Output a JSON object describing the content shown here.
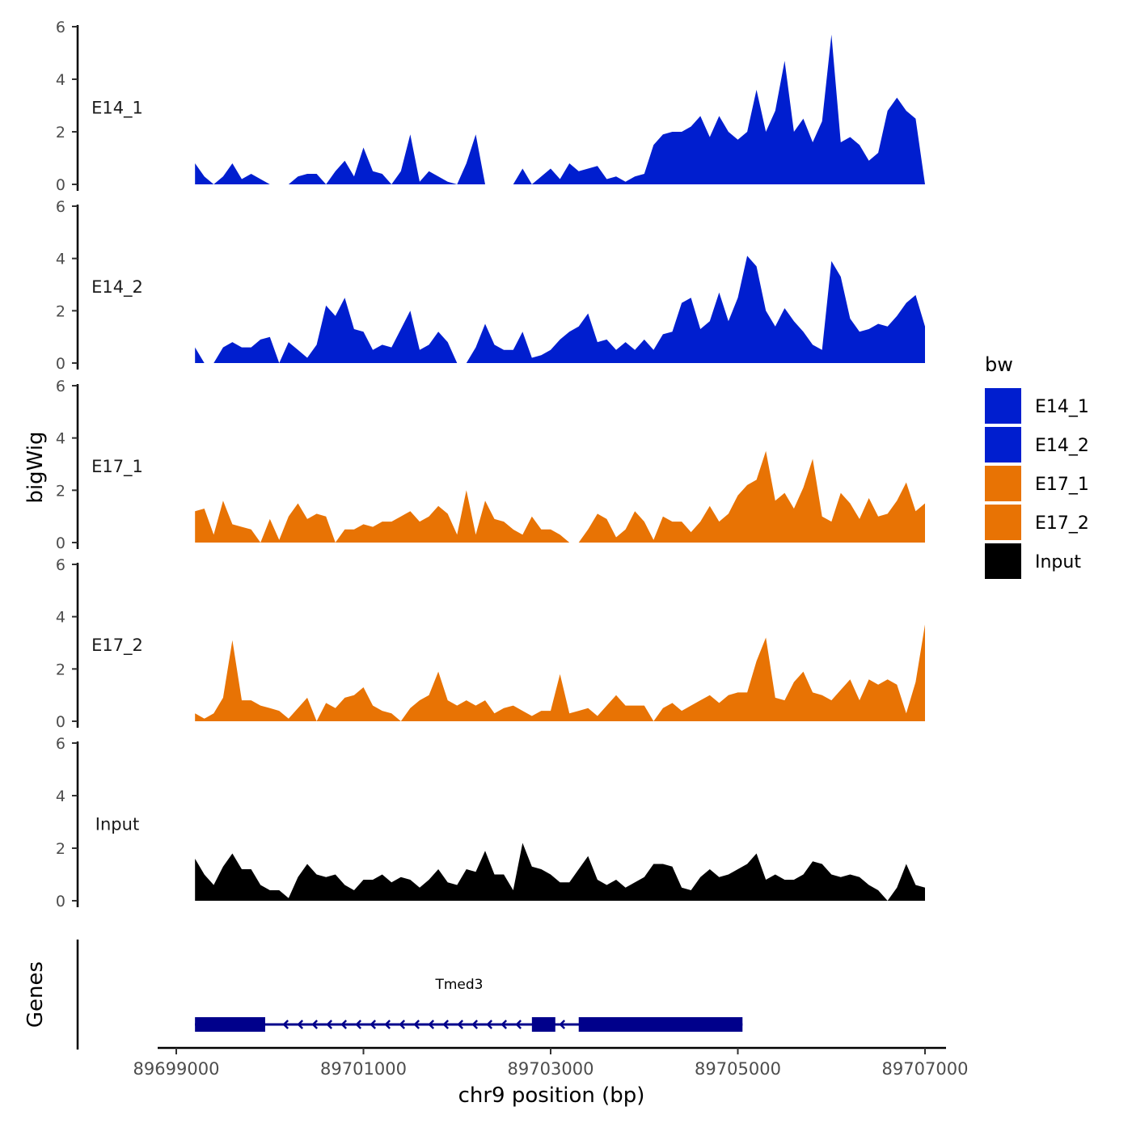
{
  "chart_data": {
    "type": "area",
    "ylabel": "bigWig",
    "xlabel": "chr9 position (bp)",
    "genes_label": "Genes",
    "ylim": [
      0,
      6
    ],
    "y_ticks": [
      "0",
      "2",
      "4",
      "6"
    ],
    "xlim": [
      89699000,
      89707000
    ],
    "x_ticks": [
      {
        "value": 89699000,
        "label": "89699000"
      },
      {
        "value": 89701000,
        "label": "89701000"
      },
      {
        "value": 89703000,
        "label": "89703000"
      },
      {
        "value": 89705000,
        "label": "89705000"
      },
      {
        "value": 89707000,
        "label": "89707000"
      }
    ],
    "legend": {
      "title": "bw",
      "entries": [
        {
          "label": "E14_1",
          "color": "#001ecf"
        },
        {
          "label": "E14_2",
          "color": "#001ecf"
        },
        {
          "label": "E17_1",
          "color": "#e87304"
        },
        {
          "label": "E17_2",
          "color": "#e87304"
        },
        {
          "label": "Input",
          "color": "#000000"
        }
      ]
    },
    "series": [
      {
        "name": "E14_1",
        "color": "#001ecf",
        "x": [
          89699200,
          89699300,
          89699400,
          89699500,
          89699600,
          89699700,
          89699800,
          89699900,
          89700000,
          89700100,
          89700200,
          89700300,
          89700400,
          89700500,
          89700600,
          89700700,
          89700800,
          89700900,
          89701000,
          89701100,
          89701200,
          89701300,
          89701400,
          89701500,
          89701600,
          89701700,
          89701800,
          89701900,
          89702000,
          89702100,
          89702200,
          89702300,
          89702400,
          89702500,
          89702600,
          89702700,
          89702800,
          89702900,
          89703000,
          89703100,
          89703200,
          89703300,
          89703400,
          89703500,
          89703600,
          89703700,
          89703800,
          89703900,
          89704000,
          89704100,
          89704200,
          89704300,
          89704400,
          89704500,
          89704600,
          89704700,
          89704800,
          89704900,
          89705000,
          89705100,
          89705200,
          89705300,
          89705400,
          89705500,
          89705600,
          89705700,
          89705800,
          89705900,
          89706000,
          89706100,
          89706200,
          89706300,
          89706400,
          89706500,
          89706600,
          89706700,
          89706800,
          89706900,
          89707000
        ],
        "y": [
          0.8,
          0.3,
          0,
          0.3,
          0.8,
          0.2,
          0.4,
          0.2,
          0,
          0,
          0,
          0.3,
          0.4,
          0.4,
          0,
          0.5,
          0.9,
          0.3,
          1.4,
          0.5,
          0.4,
          0,
          0.5,
          1.9,
          0.1,
          0.5,
          0.3,
          0.1,
          0,
          0.8,
          1.9,
          0,
          0,
          0,
          0,
          0.6,
          0,
          0.3,
          0.6,
          0.2,
          0.8,
          0.5,
          0.6,
          0.7,
          0.2,
          0.3,
          0.1,
          0.3,
          0.4,
          1.5,
          1.9,
          2.0,
          2.0,
          2.2,
          2.6,
          1.8,
          2.6,
          2.0,
          1.7,
          2.0,
          3.6,
          2.0,
          2.8,
          4.7,
          2.0,
          2.5,
          1.6,
          2.4,
          5.7,
          1.6,
          1.8,
          1.5,
          0.9,
          1.2,
          2.8,
          3.3,
          2.8,
          2.5,
          0
        ],
        "label": "E14_1"
      },
      {
        "name": "E14_2",
        "color": "#001ecf",
        "x": [
          89699200,
          89699300,
          89699400,
          89699500,
          89699600,
          89699700,
          89699800,
          89699900,
          89700000,
          89700100,
          89700200,
          89700300,
          89700400,
          89700500,
          89700600,
          89700700,
          89700800,
          89700900,
          89701000,
          89701100,
          89701200,
          89701300,
          89701400,
          89701500,
          89701600,
          89701700,
          89701800,
          89701900,
          89702000,
          89702100,
          89702200,
          89702300,
          89702400,
          89702500,
          89702600,
          89702700,
          89702800,
          89702900,
          89703000,
          89703100,
          89703200,
          89703300,
          89703400,
          89703500,
          89703600,
          89703700,
          89703800,
          89703900,
          89704000,
          89704100,
          89704200,
          89704300,
          89704400,
          89704500,
          89704600,
          89704700,
          89704800,
          89704900,
          89705000,
          89705100,
          89705200,
          89705300,
          89705400,
          89705500,
          89705600,
          89705700,
          89705800,
          89705900,
          89706000,
          89706100,
          89706200,
          89706300,
          89706400,
          89706500,
          89706600,
          89706700,
          89706800,
          89706900,
          89707000
        ],
        "y": [
          0.6,
          0,
          0,
          0.6,
          0.8,
          0.6,
          0.6,
          0.9,
          1.0,
          0,
          0.8,
          0.5,
          0.2,
          0.7,
          2.2,
          1.8,
          2.5,
          1.3,
          1.2,
          0.5,
          0.7,
          0.6,
          1.3,
          2.0,
          0.5,
          0.7,
          1.2,
          0.8,
          0,
          0,
          0.6,
          1.5,
          0.7,
          0.5,
          0.5,
          1.2,
          0.2,
          0.3,
          0.5,
          0.9,
          1.2,
          1.4,
          1.9,
          0.8,
          0.9,
          0.5,
          0.8,
          0.5,
          0.9,
          0.5,
          1.1,
          1.2,
          2.3,
          2.5,
          1.3,
          1.6,
          2.7,
          1.6,
          2.5,
          4.1,
          3.7,
          2.0,
          1.4,
          2.1,
          1.6,
          1.2,
          0.7,
          0.5,
          3.9,
          3.3,
          1.7,
          1.2,
          1.3,
          1.5,
          1.4,
          1.8,
          2.3,
          2.6,
          1.4
        ],
        "label": "E14_2"
      },
      {
        "name": "E17_1",
        "color": "#e87304",
        "x": [
          89699200,
          89699300,
          89699400,
          89699500,
          89699600,
          89699700,
          89699800,
          89699900,
          89700000,
          89700100,
          89700200,
          89700300,
          89700400,
          89700500,
          89700600,
          89700700,
          89700800,
          89700900,
          89701000,
          89701100,
          89701200,
          89701300,
          89701400,
          89701500,
          89701600,
          89701700,
          89701800,
          89701900,
          89702000,
          89702100,
          89702200,
          89702300,
          89702400,
          89702500,
          89702600,
          89702700,
          89702800,
          89702900,
          89703000,
          89703100,
          89703200,
          89703300,
          89703400,
          89703500,
          89703600,
          89703700,
          89703800,
          89703900,
          89704000,
          89704100,
          89704200,
          89704300,
          89704400,
          89704500,
          89704600,
          89704700,
          89704800,
          89704900,
          89705000,
          89705100,
          89705200,
          89705300,
          89705400,
          89705500,
          89705600,
          89705700,
          89705800,
          89705900,
          89706000,
          89706100,
          89706200,
          89706300,
          89706400,
          89706500,
          89706600,
          89706700,
          89706800,
          89706900,
          89707000
        ],
        "y": [
          1.2,
          1.3,
          0.3,
          1.6,
          0.7,
          0.6,
          0.5,
          0,
          0.9,
          0.1,
          1.0,
          1.5,
          0.9,
          1.1,
          1.0,
          0,
          0.5,
          0.5,
          0.7,
          0.6,
          0.8,
          0.8,
          1.0,
          1.2,
          0.8,
          1.0,
          1.4,
          1.1,
          0.3,
          2.0,
          0.3,
          1.6,
          0.9,
          0.8,
          0.5,
          0.3,
          1.0,
          0.5,
          0.5,
          0.3,
          0,
          0,
          0.5,
          1.1,
          0.9,
          0.2,
          0.5,
          1.2,
          0.8,
          0.1,
          1.0,
          0.8,
          0.8,
          0.4,
          0.8,
          1.4,
          0.8,
          1.1,
          1.8,
          2.2,
          2.4,
          3.5,
          1.6,
          1.9,
          1.3,
          2.1,
          3.2,
          1.0,
          0.8,
          1.9,
          1.5,
          0.9,
          1.7,
          1.0,
          1.1,
          1.6,
          2.3,
          1.2,
          1.5
        ],
        "label": "E17_1"
      },
      {
        "name": "E17_2",
        "color": "#e87304",
        "x": [
          89699200,
          89699300,
          89699400,
          89699500,
          89699600,
          89699700,
          89699800,
          89699900,
          89700000,
          89700100,
          89700200,
          89700300,
          89700400,
          89700500,
          89700600,
          89700700,
          89700800,
          89700900,
          89701000,
          89701100,
          89701200,
          89701300,
          89701400,
          89701500,
          89701600,
          89701700,
          89701800,
          89701900,
          89702000,
          89702100,
          89702200,
          89702300,
          89702400,
          89702500,
          89702600,
          89702700,
          89702800,
          89702900,
          89703000,
          89703100,
          89703200,
          89703300,
          89703400,
          89703500,
          89703600,
          89703700,
          89703800,
          89703900,
          89704000,
          89704100,
          89704200,
          89704300,
          89704400,
          89704500,
          89704600,
          89704700,
          89704800,
          89704900,
          89705000,
          89705100,
          89705200,
          89705300,
          89705400,
          89705500,
          89705600,
          89705700,
          89705800,
          89705900,
          89706000,
          89706100,
          89706200,
          89706300,
          89706400,
          89706500,
          89706600,
          89706700,
          89706800,
          89706900,
          89707000
        ],
        "y": [
          0.3,
          0.1,
          0.3,
          0.9,
          3.1,
          0.8,
          0.8,
          0.6,
          0.5,
          0.4,
          0.1,
          0.5,
          0.9,
          0,
          0.7,
          0.5,
          0.9,
          1.0,
          1.3,
          0.6,
          0.4,
          0.3,
          0,
          0.5,
          0.8,
          1.0,
          1.9,
          0.8,
          0.6,
          0.8,
          0.6,
          0.8,
          0.3,
          0.5,
          0.6,
          0.4,
          0.2,
          0.4,
          0.4,
          1.8,
          0.3,
          0.4,
          0.5,
          0.2,
          0.6,
          1.0,
          0.6,
          0.6,
          0.6,
          0,
          0.5,
          0.7,
          0.4,
          0.6,
          0.8,
          1.0,
          0.7,
          1.0,
          1.1,
          1.1,
          2.3,
          3.2,
          0.9,
          0.8,
          1.5,
          1.9,
          1.1,
          1.0,
          0.8,
          1.2,
          1.6,
          0.8,
          1.6,
          1.4,
          1.6,
          1.4,
          0.3,
          1.5,
          3.7
        ],
        "label": "E17_2"
      },
      {
        "name": "Input",
        "color": "#000000",
        "x": [
          89699200,
          89699300,
          89699400,
          89699500,
          89699600,
          89699700,
          89699800,
          89699900,
          89700000,
          89700100,
          89700200,
          89700300,
          89700400,
          89700500,
          89700600,
          89700700,
          89700800,
          89700900,
          89701000,
          89701100,
          89701200,
          89701300,
          89701400,
          89701500,
          89701600,
          89701700,
          89701800,
          89701900,
          89702000,
          89702100,
          89702200,
          89702300,
          89702400,
          89702500,
          89702600,
          89702700,
          89702800,
          89702900,
          89703000,
          89703100,
          89703200,
          89703300,
          89703400,
          89703500,
          89703600,
          89703700,
          89703800,
          89703900,
          89704000,
          89704100,
          89704200,
          89704300,
          89704400,
          89704500,
          89704600,
          89704700,
          89704800,
          89704900,
          89705000,
          89705100,
          89705200,
          89705300,
          89705400,
          89705500,
          89705600,
          89705700,
          89705800,
          89705900,
          89706000,
          89706100,
          89706200,
          89706300,
          89706400,
          89706500,
          89706600,
          89706700,
          89706800,
          89706900,
          89707000
        ],
        "y": [
          1.6,
          1.0,
          0.6,
          1.3,
          1.8,
          1.2,
          1.2,
          0.6,
          0.4,
          0.4,
          0.1,
          0.9,
          1.4,
          1.0,
          0.9,
          1.0,
          0.6,
          0.4,
          0.8,
          0.8,
          1.0,
          0.7,
          0.9,
          0.8,
          0.5,
          0.8,
          1.2,
          0.7,
          0.6,
          1.2,
          1.1,
          1.9,
          1.0,
          1.0,
          0.4,
          2.2,
          1.3,
          1.2,
          1.0,
          0.7,
          0.7,
          1.2,
          1.7,
          0.8,
          0.6,
          0.8,
          0.5,
          0.7,
          0.9,
          1.4,
          1.4,
          1.3,
          0.5,
          0.4,
          0.9,
          1.2,
          0.9,
          1.0,
          1.2,
          1.4,
          1.8,
          0.8,
          1.0,
          0.8,
          0.8,
          1.0,
          1.5,
          1.4,
          1.0,
          0.9,
          1.0,
          0.9,
          0.6,
          0.4,
          0,
          0.5,
          1.4,
          0.6,
          0.5
        ],
        "label": "Input"
      }
    ],
    "genes": [
      {
        "name": "Tmed3",
        "strand": "-",
        "start": 89699200,
        "end": 89705050,
        "color": "#00008b",
        "exons": [
          [
            89699200,
            89699950
          ],
          [
            89702800,
            89703050
          ],
          [
            89703300,
            89705050
          ]
        ]
      }
    ]
  }
}
